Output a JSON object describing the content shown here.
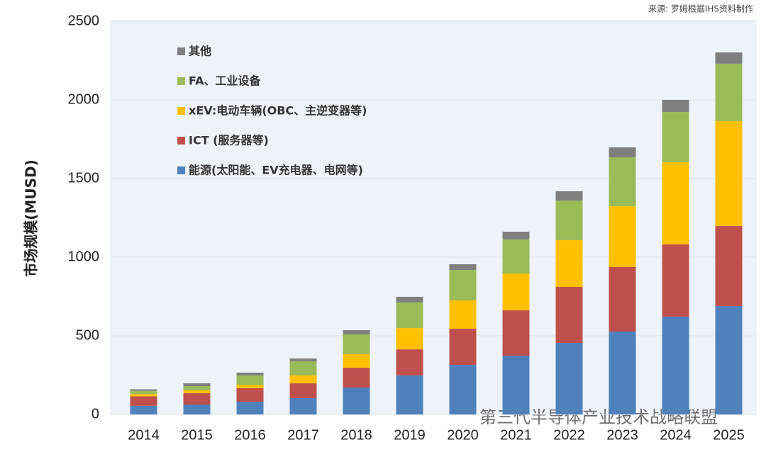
{
  "chart_data": {
    "type": "stacked_bar",
    "source": "来源: 罗姆根据IHS资料制作",
    "ylabel": "市场规模(MUSD)",
    "watermark": "第三代半导体产业技术战略联盟",
    "categories": [
      "2014",
      "2015",
      "2016",
      "2017",
      "2018",
      "2019",
      "2020",
      "2021",
      "2022",
      "2023",
      "2024",
      "2025"
    ],
    "series": [
      {
        "name": "能源(太阳能、EV充电器、电网等)",
        "color": "#4f81bd",
        "values": [
          55,
          63,
          81,
          104,
          171,
          248,
          315,
          374,
          455,
          527,
          622,
          689
        ]
      },
      {
        "name": "ICT (服务器等)",
        "color": "#c0504d",
        "values": [
          60,
          72,
          86,
          94,
          126,
          166,
          230,
          288,
          356,
          410,
          459,
          509
        ]
      },
      {
        "name": "xEV:电动车辆(OBC、主逆变器等)",
        "color": "#ffc000",
        "values": [
          15,
          18,
          22,
          50,
          86,
          135,
          180,
          234,
          297,
          387,
          523,
          667
        ]
      },
      {
        "name": "FA、工业设备",
        "color": "#9bbb59",
        "values": [
          20,
          27,
          59,
          90,
          126,
          163,
          194,
          217,
          252,
          311,
          319,
          365
        ]
      },
      {
        "name": "其他",
        "color": "#7f7f7f",
        "values": [
          10,
          18,
          18,
          18,
          27,
          36,
          36,
          49,
          59,
          63,
          77,
          72
        ]
      }
    ],
    "ylim": [
      0,
      2500
    ],
    "yticks": [
      0,
      500,
      1000,
      1500,
      2000,
      2500
    ],
    "grid": true,
    "legend": "upper left"
  }
}
